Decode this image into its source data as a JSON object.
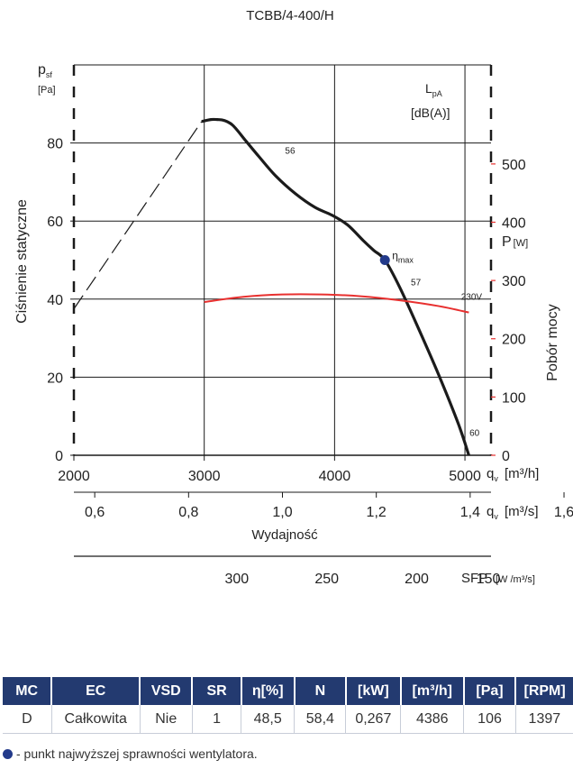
{
  "title": "TCBB/4-400/H",
  "chart_data": {
    "type": "line",
    "title": "TCBB/4-400/H",
    "x_unit_primary": "m³/h",
    "x_unit_secondary": "m³/s",
    "xlim": [
      2000,
      5200
    ],
    "ylim": [
      0,
      100
    ],
    "power_ylim": [
      0,
      670
    ],
    "grid": true,
    "ylabel": "Ciśnienie statyczne",
    "ylabel_symbol": "p",
    "ylabel_sub": "sf",
    "ylabel_unit": "[Pa]",
    "xlabel": "Wydajność",
    "right_ylabel": "Pobór mocy",
    "right_unit": "P",
    "right_unit_sub": "[W]",
    "lpa_label": "L",
    "lpa_sub": "pA",
    "lpa_unit": "[dB(A)]",
    "x_ticks_primary": [
      2000,
      3000,
      4000,
      5000
    ],
    "x_ticks_primary_labels": [
      "2000",
      "3000",
      "4000",
      "5000"
    ],
    "x_ticks_secondary": [
      0.6,
      0.8,
      1.0,
      1.2,
      1.4,
      1.6
    ],
    "x_ticks_secondary_labels": [
      "0,6",
      "0,8",
      "1,0",
      "1,2",
      "1,4",
      "1,6"
    ],
    "y_ticks": [
      0,
      20,
      40,
      60,
      80
    ],
    "power_ticks": [
      0,
      100,
      200,
      300,
      400,
      500
    ],
    "qv_label": "q",
    "qv_sub": "v",
    "qv_unit_h": "[m³/h]",
    "qv_unit_s": "[m³/s]",
    "sfp_label": "SFP",
    "sfp_unit": "[W /m³/s]",
    "sfp_ticks": [
      {
        "label": "300",
        "x": 3250
      },
      {
        "label": "250",
        "x": 3940
      },
      {
        "label": "200",
        "x": 4630
      },
      {
        "label": "150",
        "x": 5180
      }
    ],
    "series": [
      {
        "name": "",
        "kind": "pressure",
        "color": "#1b1b1b",
        "x": [
          2980,
          3050,
          3100,
          3150,
          3220,
          3320,
          3420,
          3550,
          3700,
          3850,
          3980,
          4100,
          4220,
          4300,
          4386,
          4500,
          4650,
          4800,
          4950,
          5030
        ],
        "y": [
          85.5,
          86,
          86,
          85.8,
          84.5,
          80.5,
          76.5,
          71.5,
          67,
          63.5,
          61.5,
          59,
          55,
          52.5,
          50,
          43,
          32,
          20.5,
          8,
          0
        ]
      },
      {
        "name": "",
        "kind": "extrapolation",
        "color": "#1b1b1b",
        "dashed": true,
        "x": [
          2000,
          2980
        ],
        "y": [
          37.5,
          85.5
        ]
      },
      {
        "name": "230V",
        "kind": "power",
        "color": "#e8302f",
        "x": [
          3000,
          3300,
          3600,
          3900,
          4200,
          4500,
          4800,
          5030
        ],
        "y": [
          263,
          272,
          276,
          276,
          273,
          266,
          256,
          245
        ]
      }
    ],
    "annotations": [
      {
        "text": "56",
        "x": 3620,
        "y": 77.2
      },
      {
        "text": "57",
        "x": 4585,
        "y": 43.5
      },
      {
        "text": "60",
        "x": 5035,
        "y": 5
      },
      {
        "text": "230V",
        "x": 4970,
        "y": 267
      }
    ],
    "eta_point": {
      "label": "η",
      "sub": "max",
      "x": 4386,
      "y": 50
    }
  },
  "table": {
    "headers": [
      "MC",
      "EC",
      "VSD",
      "SR",
      "η[%]",
      "N",
      "[kW]",
      "[m³/h]",
      "[Pa]",
      "[RPM]"
    ],
    "rows": [
      [
        "D",
        "Całkowita",
        "Nie",
        "1",
        "48,5",
        "58,4",
        "0,267",
        "4386",
        "106",
        "1397"
      ]
    ]
  },
  "footnote": "- punkt najwyższej sprawności wentylatora.",
  "colors": {
    "pressure": "#1b1b1b",
    "power": "#e8302f",
    "lpa": "#3aa34a",
    "eta_point": "#233a8a",
    "table_header": "#233a70"
  }
}
